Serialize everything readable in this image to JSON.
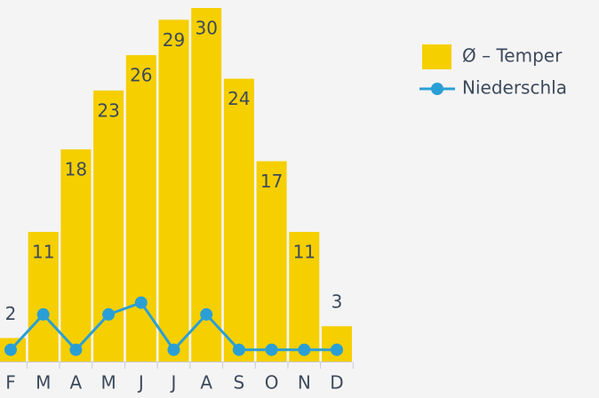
{
  "chart_data": {
    "type": "bar-line",
    "categories": [
      "F",
      "M",
      "A",
      "M",
      "J",
      "J",
      "A",
      "S",
      "O",
      "N",
      "D"
    ],
    "ylim": [
      0,
      30
    ],
    "series": [
      {
        "name": "Ø – Temper",
        "type": "bar",
        "color": "#f5cf00",
        "values": [
          2,
          11,
          18,
          23,
          26,
          29,
          30,
          24,
          17,
          11,
          3
        ]
      },
      {
        "name": "Niederschla",
        "type": "line",
        "color": "#2a9fd6",
        "values": [
          1,
          4,
          1,
          4,
          5,
          1,
          4,
          1,
          1,
          1,
          1
        ]
      }
    ]
  }
}
